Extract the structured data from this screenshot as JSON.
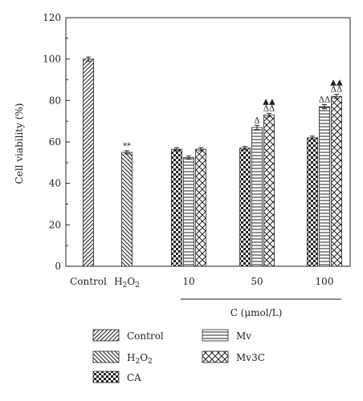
{
  "chart_data": {
    "type": "bar",
    "ylabel": "Cell viability (%)",
    "xlabel": "C (μmol/L)",
    "ylim": [
      0,
      120
    ],
    "yticks": [
      0,
      20,
      40,
      60,
      80,
      100,
      120
    ],
    "grid": false,
    "legend_position": "bottom",
    "groups": [
      {
        "label": "Control",
        "bars": [
          {
            "series": "Control",
            "value": 100,
            "error": 1
          }
        ],
        "annotation": ""
      },
      {
        "label_main": "H",
        "label_sub1": "2",
        "label_mid": "O",
        "label_sub2": "2",
        "bars": [
          {
            "series": "H2O2",
            "value": 55,
            "error": 0.8
          }
        ],
        "annotation": "**"
      },
      {
        "label": "10",
        "bars": [
          {
            "series": "CA",
            "value": 56.5,
            "error": 0.8
          },
          {
            "series": "Mv",
            "value": 52.5,
            "error": 0.8
          },
          {
            "series": "Mv3C",
            "value": 56.5,
            "error": 0.8
          }
        ]
      },
      {
        "label": "50",
        "bars": [
          {
            "series": "CA",
            "value": 57,
            "error": 0.8
          },
          {
            "series": "Mv",
            "value": 67,
            "error": 1
          },
          {
            "series": "Mv3C",
            "value": 73,
            "error": 0.8
          }
        ]
      },
      {
        "label": "100",
        "bars": [
          {
            "series": "CA",
            "value": 62,
            "error": 0.8
          },
          {
            "series": "Mv",
            "value": 77,
            "error": 1
          },
          {
            "series": "Mv3C",
            "value": 82,
            "error": 1
          }
        ]
      }
    ],
    "markers": [
      {
        "group": 3,
        "series": "Mv",
        "rows": [
          "Δ"
        ]
      },
      {
        "group": 3,
        "series": "Mv3C",
        "rows": [
          "▲▲",
          "ΔΔ"
        ]
      },
      {
        "group": 4,
        "series": "Mv",
        "rows": [
          "ΔΔ"
        ]
      },
      {
        "group": 4,
        "series": "Mv3C",
        "rows": [
          "▲▲",
          "ΔΔ"
        ]
      }
    ],
    "legend": [
      {
        "name": "Control",
        "pattern": "diag-right"
      },
      {
        "name_main": "H",
        "name_sub1": "2",
        "name_mid": "O",
        "name_sub2": "2",
        "pattern": "diag-left"
      },
      {
        "name": "CA",
        "pattern": "checker"
      },
      {
        "name": "Mv",
        "pattern": "horizontal"
      },
      {
        "name": "Mv3C",
        "pattern": "crosshatch"
      }
    ]
  }
}
